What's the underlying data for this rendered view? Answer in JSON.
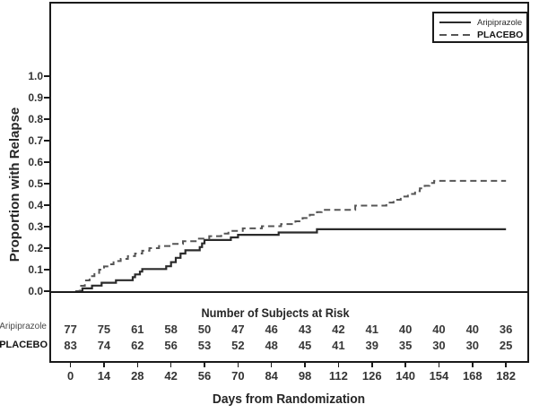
{
  "figure": {
    "y_axis": {
      "label": "Proportion with Relapse",
      "ticks": [
        "0.0",
        "0.1",
        "0.2",
        "0.3",
        "0.4",
        "0.5",
        "0.6",
        "0.7",
        "0.8",
        "0.9",
        "1.0"
      ]
    },
    "x_axis": {
      "label": "Days from Randomization",
      "ticks": [
        "0",
        "14",
        "28",
        "42",
        "56",
        "70",
        "84",
        "98",
        "112",
        "126",
        "140",
        "154",
        "168",
        "182"
      ]
    },
    "legend": [
      {
        "label": "Aripiprazole",
        "style": "solid"
      },
      {
        "label": "PLACEBO",
        "style": "dashed"
      }
    ],
    "risk_table": {
      "title": "Number of Subjects at Risk",
      "rows": [
        {
          "label": "Aripiprazole",
          "values": [
            77,
            75,
            61,
            58,
            50,
            47,
            46,
            43,
            42,
            41,
            40,
            40,
            40,
            36
          ]
        },
        {
          "label": "PLACEBO",
          "values": [
            83,
            74,
            62,
            56,
            53,
            52,
            48,
            45,
            41,
            39,
            35,
            30,
            30,
            25
          ]
        }
      ]
    },
    "colors": {
      "frame": "#1a1a1a",
      "solid_curve": "#2b2b2b",
      "dashed_curve": "#555555"
    }
  },
  "chart_data": {
    "type": "line",
    "subtype": "kaplan-meier-step",
    "title": "",
    "xlabel": "Days from Randomization",
    "ylabel": "Proportion with Relapse",
    "xlim": [
      0,
      182
    ],
    "ylim": [
      0,
      1.0
    ],
    "x_ticks": [
      0,
      14,
      28,
      42,
      56,
      70,
      84,
      98,
      112,
      126,
      140,
      154,
      168,
      182
    ],
    "y_ticks": [
      0,
      0.1,
      0.2,
      0.3,
      0.4,
      0.5,
      0.6,
      0.7,
      0.8,
      0.9,
      1.0
    ],
    "grid": false,
    "legend_position": "top-right",
    "series": [
      {
        "name": "Aripiprazole",
        "style": "solid",
        "color": "#2b2b2b",
        "final_value": 0.29,
        "steps": [
          [
            3,
            0
          ],
          [
            5,
            0.013
          ],
          [
            9,
            0.026
          ],
          [
            13,
            0.039
          ],
          [
            19,
            0.051
          ],
          [
            26,
            0.065
          ],
          [
            27,
            0.078
          ],
          [
            29,
            0.091
          ],
          [
            30,
            0.103
          ],
          [
            40,
            0.116
          ],
          [
            42,
            0.135
          ],
          [
            44,
            0.155
          ],
          [
            46,
            0.175
          ],
          [
            48,
            0.19
          ],
          [
            54,
            0.205
          ],
          [
            55,
            0.222
          ],
          [
            56,
            0.238
          ],
          [
            67,
            0.25
          ],
          [
            70,
            0.262
          ],
          [
            87,
            0.273
          ],
          [
            103,
            0.288
          ],
          [
            182,
            0.288
          ]
        ]
      },
      {
        "name": "PLACEBO",
        "style": "dashed",
        "color": "#555555",
        "final_value": 0.51,
        "steps": [
          [
            2,
            0
          ],
          [
            4,
            0.025
          ],
          [
            6,
            0.05
          ],
          [
            8,
            0.07
          ],
          [
            10,
            0.085
          ],
          [
            12,
            0.1
          ],
          [
            14,
            0.115
          ],
          [
            16,
            0.125
          ],
          [
            18,
            0.14
          ],
          [
            21,
            0.15
          ],
          [
            24,
            0.163
          ],
          [
            27,
            0.175
          ],
          [
            30,
            0.188
          ],
          [
            33,
            0.2
          ],
          [
            37,
            0.21
          ],
          [
            42,
            0.22
          ],
          [
            47,
            0.232
          ],
          [
            53,
            0.244
          ],
          [
            58,
            0.256
          ],
          [
            63,
            0.268
          ],
          [
            66,
            0.28
          ],
          [
            72,
            0.292
          ],
          [
            80,
            0.302
          ],
          [
            88,
            0.312
          ],
          [
            94,
            0.325
          ],
          [
            97,
            0.34
          ],
          [
            100,
            0.355
          ],
          [
            103,
            0.368
          ],
          [
            105,
            0.378
          ],
          [
            119,
            0.398
          ],
          [
            132,
            0.412
          ],
          [
            135,
            0.425
          ],
          [
            138,
            0.44
          ],
          [
            141,
            0.452
          ],
          [
            144,
            0.465
          ],
          [
            146,
            0.478
          ],
          [
            148,
            0.49
          ],
          [
            150,
            0.503
          ],
          [
            152,
            0.513
          ],
          [
            182,
            0.513
          ]
        ]
      }
    ],
    "subjects_at_risk": {
      "days": [
        0,
        14,
        28,
        42,
        56,
        70,
        84,
        98,
        112,
        126,
        140,
        154,
        168,
        182
      ],
      "Aripiprazole": [
        77,
        75,
        61,
        58,
        50,
        47,
        46,
        43,
        42,
        41,
        40,
        40,
        40,
        36
      ],
      "PLACEBO": [
        83,
        74,
        62,
        56,
        53,
        52,
        48,
        45,
        41,
        39,
        35,
        30,
        30,
        25
      ]
    }
  }
}
